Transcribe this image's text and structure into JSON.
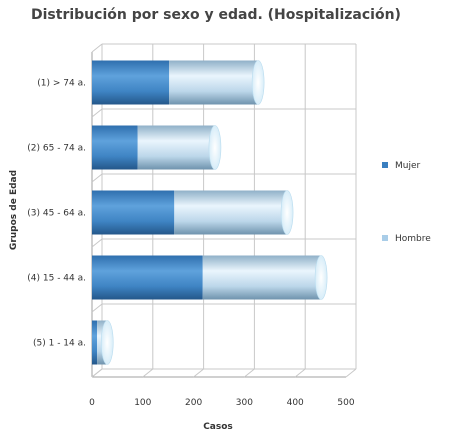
{
  "chart_data": {
    "type": "bar",
    "orientation": "horizontal",
    "stacked": true,
    "title": "Distribución por sexo y edad. (Hospitalización)",
    "xlabel": "Casos",
    "ylabel": "Grupos de Edad",
    "categories": [
      "(1) > 74 a.",
      "(2) 65 - 74 a.",
      "(3) 45 - 64 a.",
      "(4) 15 - 44 a.",
      "(5) 1 - 14 a."
    ],
    "series": [
      {
        "name": "Mujer",
        "values": [
          152,
          90,
          162,
          218,
          10
        ],
        "color": "#3a7fc0"
      },
      {
        "name": "Hombre",
        "values": [
          175,
          152,
          222,
          233,
          20
        ],
        "color": "#a9cde8"
      }
    ],
    "xticks": [
      "0",
      "100",
      "200",
      "300",
      "400",
      "500"
    ],
    "xlim": [
      0,
      500
    ],
    "grid": true,
    "legend_position": "right",
    "style": "3d-cylinder"
  }
}
